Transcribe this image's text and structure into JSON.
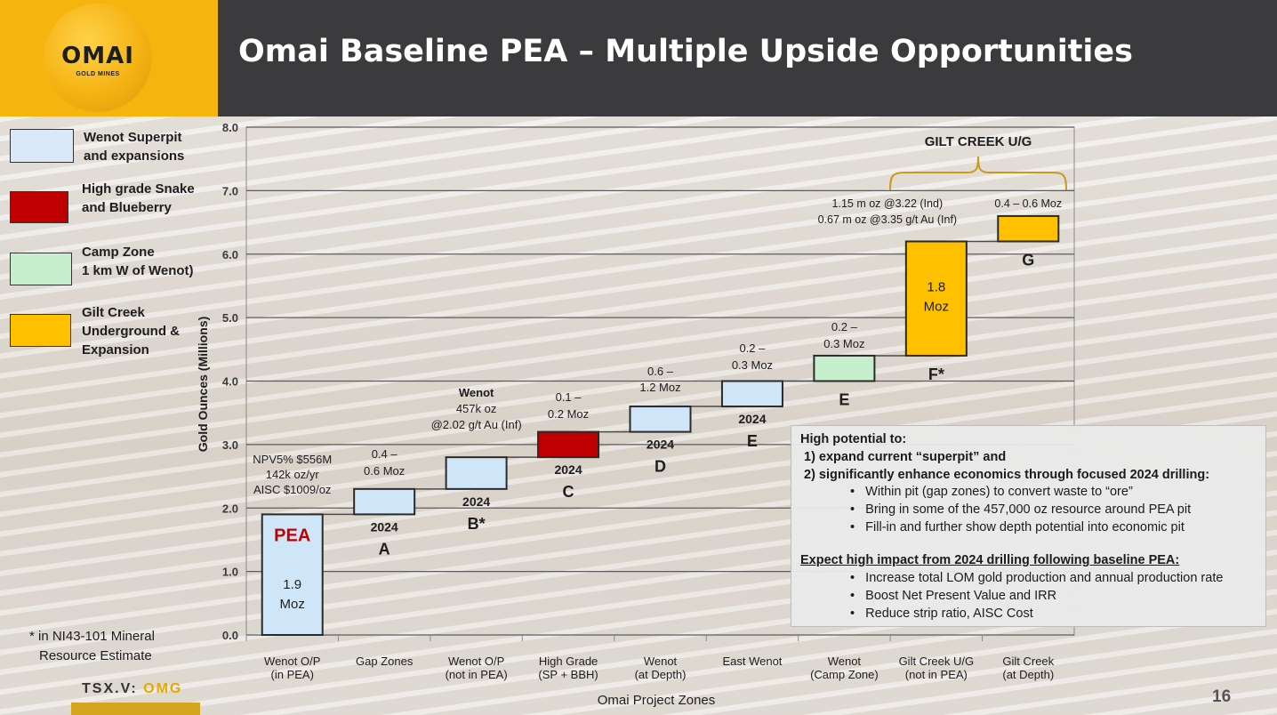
{
  "header": {
    "logo_text": "OMAI",
    "logo_subtext": "GOLD MINES",
    "title": "Omai Baseline PEA – Multiple Upside Opportunities"
  },
  "legend": [
    {
      "label_lines": [
        "Wenot Superpit",
        "and expansions"
      ],
      "color": "#dbe8f8"
    },
    {
      "label_lines": [
        "High grade Snake",
        "and Blueberry"
      ],
      "color": "#c00000"
    },
    {
      "label_lines": [
        "Camp Zone",
        "1 km W of Wenot)"
      ],
      "color": "#c6efce"
    },
    {
      "label_lines": [
        "Gilt Creek",
        "Underground &",
        "Expansion"
      ],
      "color": "#ffc000"
    }
  ],
  "chart_data": {
    "type": "bar",
    "subtype": "waterfall",
    "xlabel": "Omai Project Zones",
    "ylabel": "Gold Ounces (Millions)",
    "ylim": [
      0,
      8
    ],
    "yticks": [
      "0.0",
      "1.0",
      "2.0",
      "3.0",
      "4.0",
      "5.0",
      "6.0",
      "7.0",
      "8.0"
    ],
    "grid": true,
    "categories": [
      [
        "Wenot O/P",
        "(in PEA)"
      ],
      [
        "Gap Zones"
      ],
      [
        "Wenot O/P",
        "(not in PEA)"
      ],
      [
        "High Grade",
        "(SP + BBH)"
      ],
      [
        "Wenot",
        "(at Depth)"
      ],
      [
        "East Wenot"
      ],
      [
        "Wenot",
        "(Camp Zone)"
      ],
      [
        "Gilt Creek U/G",
        "(not in PEA)"
      ],
      [
        "Gilt Creek",
        "(at Depth)"
      ]
    ],
    "bars": [
      {
        "start": 0.0,
        "end": 1.9,
        "color": "#cfe6f8",
        "inside": [
          "1.9",
          "Moz"
        ],
        "heading": "PEA",
        "year": "",
        "letter": "",
        "above": [
          "NPV5% $556M",
          "142k oz/yr",
          "AISC $1009/oz"
        ]
      },
      {
        "start": 1.9,
        "end": 2.3,
        "color": "#cfe6f8",
        "inside": [],
        "heading": "",
        "year": "2024",
        "letter": "A",
        "above": [
          "0.4 –",
          "0.6 Moz"
        ]
      },
      {
        "start": 2.3,
        "end": 2.8,
        "color": "#cfe6f8",
        "inside": [],
        "heading": "",
        "year": "2024",
        "letter": "B*",
        "above": [
          "Wenot",
          "457k oz",
          "@2.02 g/t Au (Inf)"
        ]
      },
      {
        "start": 2.8,
        "end": 3.2,
        "color": "#c00000",
        "inside": [],
        "heading": "",
        "year": "2024",
        "letter": "C",
        "above": [
          "0.1 –",
          "0.2 Moz"
        ]
      },
      {
        "start": 3.2,
        "end": 3.6,
        "color": "#cfe6f8",
        "inside": [],
        "heading": "",
        "year": "2024",
        "letter": "D",
        "above": [
          "0.6 –",
          "1.2 Moz"
        ]
      },
      {
        "start": 3.6,
        "end": 4.0,
        "color": "#cfe6f8",
        "inside": [],
        "heading": "",
        "year": "2024",
        "letter": "E",
        "above": [
          "0.2 –",
          "0.3 Moz"
        ]
      },
      {
        "start": 4.0,
        "end": 4.4,
        "color": "#c6efce",
        "inside": [],
        "heading": "",
        "year": "",
        "letter": "E",
        "above": [
          "0.2 –",
          "0.3 Moz"
        ]
      },
      {
        "start": 4.4,
        "end": 6.2,
        "color": "#ffc000",
        "inside": [
          "1.8",
          "Moz"
        ],
        "heading": "",
        "year": "",
        "letter": "F*",
        "above": [
          "1.15 m oz @3.22 (Ind)",
          "0.67 m oz @3.35 g/t Au (Inf)"
        ]
      },
      {
        "start": 6.2,
        "end": 6.6,
        "color": "#ffc000",
        "inside": [],
        "heading": "",
        "year": "",
        "letter": "G",
        "above": [
          "0.4 –  0.6 Moz"
        ]
      }
    ],
    "bracket_label": "GILT CREEK U/G"
  },
  "info_box": {
    "heading": "High potential to:",
    "point1": "1) expand current “superpit” and",
    "point2": "2) significantly enhance economics through focused 2024 drilling:",
    "bullets1": [
      "Within pit (gap zones) to convert waste to “ore”",
      "Bring in some of the 457,000 oz resource around PEA pit",
      "Fill-in and further show depth potential into economic pit"
    ],
    "heading2": "Expect high impact from 2024 drilling following baseline PEA:",
    "bullets2": [
      "Increase total LOM gold production and annual production rate",
      "Boost Net Present Value and IRR",
      "Reduce strip ratio,  AISC Cost"
    ]
  },
  "footnote": {
    "lines": [
      "* in NI43-101 Mineral",
      "Resource Estimate"
    ]
  },
  "ticker": {
    "prefix": "TSX.V: ",
    "symbol": "OMG"
  },
  "page_number": "16"
}
